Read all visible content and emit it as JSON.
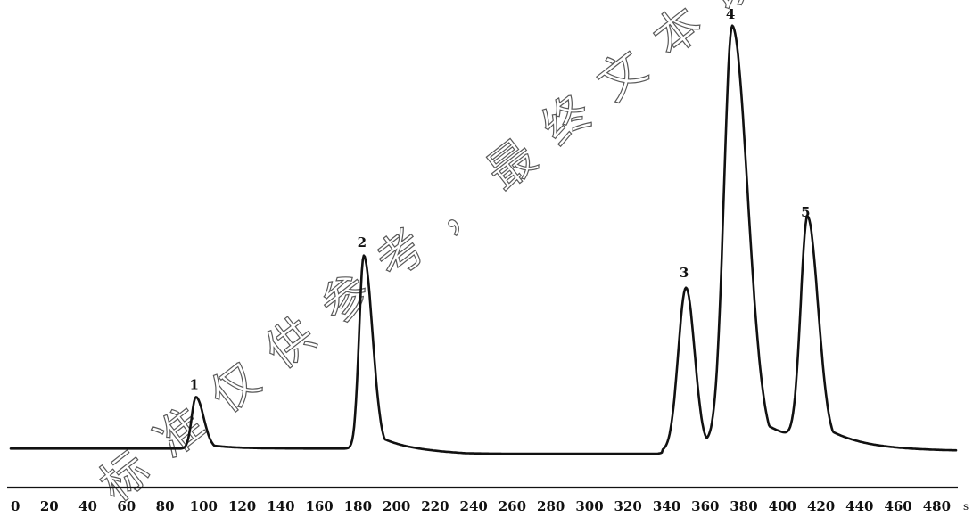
{
  "chart_data": {
    "type": "line",
    "xlabel": "",
    "ylabel": "",
    "x_unit": "s",
    "xlim": [
      0,
      490
    ],
    "ylim": [
      0,
      100
    ],
    "grid": false,
    "x_ticks": [
      0,
      20,
      40,
      60,
      80,
      100,
      120,
      140,
      160,
      180,
      200,
      220,
      240,
      260,
      280,
      300,
      320,
      340,
      360,
      380,
      400,
      420,
      440,
      460,
      480
    ],
    "baseline": 2,
    "peaks": [
      {
        "label": "1",
        "x": 96,
        "y": 14
      },
      {
        "label": "2",
        "x": 183,
        "y": 47
      },
      {
        "label": "3",
        "x": 350,
        "y": 40
      },
      {
        "label": "4",
        "x": 374,
        "y": 100
      },
      {
        "label": "5",
        "x": 413,
        "y": 54
      }
    ],
    "color": "#111111"
  },
  "watermark": {
    "text": "标准仅供参考，最终文本以正"
  }
}
